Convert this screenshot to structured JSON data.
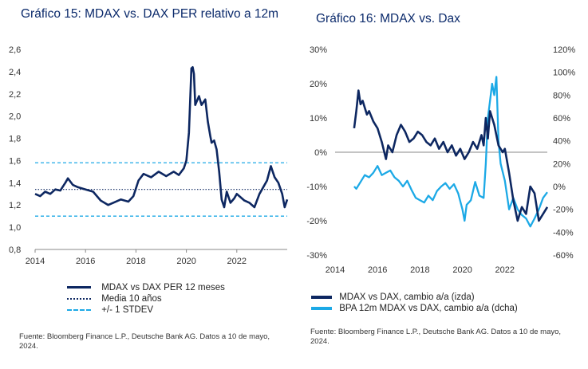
{
  "charts": {
    "left_title": "Gráfico 15: MDAX vs. DAX PER relativo a 12m",
    "right_title": "Gráfico 16: MDAX vs. Dax",
    "left_source": "Fuente: Bloomberg Finance L.P., Deutsche Bank AG. Datos a 10 de mayo, 2024.",
    "right_source": "Fuente: Bloomberg Finance L.P., Deutsche Bank AG. Datos a 10 de mayo, 2024."
  },
  "colors": {
    "navy": "#0d2761",
    "cyan": "#1ca9e6",
    "title": "#0b2a6b"
  },
  "chart_data": [
    {
      "type": "line",
      "title": "Gráfico 15: MDAX vs. DAX PER relativo a 12m",
      "xlim": [
        2014,
        2024
      ],
      "ylim": [
        0.8,
        2.6
      ],
      "x_ticks": [
        "2014",
        "2016",
        "2018",
        "2020",
        "2022"
      ],
      "y_ticks": [
        "0,8",
        "1,0",
        "1,2",
        "1,4",
        "1,6",
        "1,8",
        "2,0",
        "2,2",
        "2,4",
        "2,6"
      ],
      "legend": [
        "MDAX vs DAX PER 12 meses",
        "Media 10 años",
        "+/- 1 STDEV"
      ],
      "reference_lines": {
        "mean": 1.34,
        "upper": 1.58,
        "lower": 1.1
      },
      "series": [
        {
          "name": "MDAX vs DAX PER 12 meses",
          "x": [
            2014.0,
            2014.2,
            2014.4,
            2014.6,
            2014.8,
            2015.0,
            2015.2,
            2015.3,
            2015.5,
            2015.7,
            2016.0,
            2016.3,
            2016.6,
            2016.9,
            2017.1,
            2017.4,
            2017.7,
            2017.9,
            2018.1,
            2018.3,
            2018.6,
            2018.9,
            2019.2,
            2019.5,
            2019.7,
            2019.9,
            2020.0,
            2020.1,
            2020.2,
            2020.25,
            2020.3,
            2020.35,
            2020.5,
            2020.6,
            2020.75,
            2020.85,
            2020.95,
            2021.0,
            2021.1,
            2021.2,
            2021.3,
            2021.4,
            2021.5,
            2021.6,
            2021.75,
            2021.9,
            2022.0,
            2022.1,
            2022.3,
            2022.5,
            2022.7,
            2022.9,
            2023.0,
            2023.2,
            2023.35,
            2023.5,
            2023.65,
            2023.8,
            2023.9,
            2024.0
          ],
          "y": [
            1.3,
            1.28,
            1.32,
            1.3,
            1.34,
            1.33,
            1.4,
            1.44,
            1.38,
            1.36,
            1.34,
            1.32,
            1.24,
            1.2,
            1.22,
            1.25,
            1.23,
            1.28,
            1.42,
            1.48,
            1.45,
            1.5,
            1.46,
            1.5,
            1.47,
            1.53,
            1.6,
            1.85,
            2.43,
            2.44,
            2.38,
            2.1,
            2.18,
            2.1,
            2.15,
            1.95,
            1.82,
            1.76,
            1.78,
            1.7,
            1.5,
            1.25,
            1.18,
            1.32,
            1.22,
            1.26,
            1.3,
            1.28,
            1.24,
            1.22,
            1.18,
            1.3,
            1.34,
            1.42,
            1.55,
            1.45,
            1.4,
            1.3,
            1.18,
            1.25
          ]
        }
      ]
    },
    {
      "type": "line",
      "title": "Gráfico 16: MDAX vs. Dax",
      "xlim": [
        2014,
        2024
      ],
      "ylim_left": [
        -30,
        30
      ],
      "ylim_right": [
        -60,
        120
      ],
      "x_ticks": [
        "2014",
        "2016",
        "2018",
        "2020",
        "2022"
      ],
      "y_ticks_left": [
        "-30%",
        "-20%",
        "-10%",
        "0%",
        "10%",
        "20%",
        "30%"
      ],
      "y_ticks_right": [
        "-60%",
        "-40%",
        "-20%",
        "0%",
        "20%",
        "40%",
        "60%",
        "80%",
        "100%",
        "120%"
      ],
      "legend": [
        "MDAX vs DAX, cambio a/a (izda)",
        "BPA 12m MDAX vs DAX, cambio a/a (dcha)"
      ],
      "series": [
        {
          "name": "MDAX vs DAX, cambio a/a (izda)",
          "axis": "left",
          "x": [
            2014.9,
            2015.0,
            2015.1,
            2015.2,
            2015.3,
            2015.4,
            2015.5,
            2015.6,
            2015.8,
            2016.0,
            2016.2,
            2016.4,
            2016.5,
            2016.7,
            2016.9,
            2017.1,
            2017.3,
            2017.5,
            2017.7,
            2017.9,
            2018.1,
            2018.3,
            2018.5,
            2018.7,
            2018.9,
            2019.1,
            2019.3,
            2019.5,
            2019.7,
            2019.9,
            2020.1,
            2020.3,
            2020.5,
            2020.7,
            2020.9,
            2021.0,
            2021.1,
            2021.2,
            2021.3,
            2021.5,
            2021.7,
            2021.9,
            2022.0,
            2022.2,
            2022.4,
            2022.6,
            2022.8,
            2023.0,
            2023.2,
            2023.4,
            2023.6,
            2023.8,
            2024.0
          ],
          "y": [
            7,
            12,
            18,
            14,
            15,
            13,
            11,
            12,
            9,
            7,
            3,
            -2,
            2,
            0,
            5,
            8,
            6,
            3,
            4,
            6,
            5,
            3,
            2,
            4,
            1,
            3,
            0,
            2,
            -1,
            1,
            -2,
            0,
            3,
            1,
            5,
            2,
            10,
            4,
            12,
            8,
            2,
            0,
            1,
            -6,
            -14,
            -20,
            -16,
            -18,
            -10,
            -12,
            -20,
            -18,
            -16
          ]
        },
        {
          "name": "BPA 12m MDAX vs DAX, cambio a/a (dcha)",
          "axis": "right",
          "x": [
            2014.9,
            2015.0,
            2015.2,
            2015.4,
            2015.6,
            2015.8,
            2016.0,
            2016.2,
            2016.4,
            2016.6,
            2016.8,
            2017.0,
            2017.2,
            2017.4,
            2017.6,
            2017.8,
            2018.0,
            2018.2,
            2018.4,
            2018.6,
            2018.8,
            2019.0,
            2019.2,
            2019.4,
            2019.6,
            2019.8,
            2020.0,
            2020.1,
            2020.2,
            2020.3,
            2020.4,
            2020.6,
            2020.8,
            2021.0,
            2021.1,
            2021.2,
            2021.3,
            2021.4,
            2021.5,
            2021.6,
            2021.7,
            2021.8,
            2022.0,
            2022.2,
            2022.4,
            2022.6,
            2022.8,
            2023.0,
            2023.2,
            2023.4,
            2023.6,
            2023.8,
            2024.0
          ],
          "y": [
            0,
            -2,
            4,
            10,
            8,
            12,
            18,
            10,
            12,
            14,
            8,
            5,
            0,
            5,
            -3,
            -10,
            -12,
            -14,
            -8,
            -12,
            -4,
            0,
            3,
            -2,
            2,
            -6,
            -20,
            -30,
            -16,
            -14,
            -12,
            4,
            -8,
            -10,
            20,
            60,
            75,
            90,
            80,
            96,
            40,
            20,
            5,
            -20,
            -10,
            -20,
            -25,
            -28,
            -35,
            -28,
            -20,
            -10,
            -5
          ]
        }
      ]
    }
  ]
}
